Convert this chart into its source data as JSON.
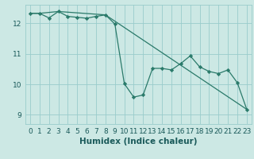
{
  "xlabel": "Humidex (Indice chaleur)",
  "background_color": "#cce8e4",
  "grid_color": "#99cccc",
  "line_color": "#2a7a6a",
  "marker_color": "#2a7a6a",
  "xlim": [
    -0.5,
    23.5
  ],
  "ylim": [
    8.7,
    12.6
  ],
  "yticks": [
    9,
    10,
    11,
    12
  ],
  "xticks": [
    0,
    1,
    2,
    3,
    4,
    5,
    6,
    7,
    8,
    9,
    10,
    11,
    12,
    13,
    14,
    15,
    16,
    17,
    18,
    19,
    20,
    21,
    22,
    23
  ],
  "line1_x": [
    0,
    1,
    2,
    3,
    4,
    5,
    6,
    7,
    8,
    9,
    10,
    11,
    12,
    13,
    14,
    15,
    16,
    17,
    18,
    19,
    20,
    21,
    22,
    23
  ],
  "line1_y": [
    12.32,
    12.32,
    12.17,
    12.38,
    12.22,
    12.19,
    12.16,
    12.22,
    12.27,
    11.97,
    10.02,
    9.58,
    9.65,
    10.52,
    10.52,
    10.47,
    10.68,
    10.93,
    10.57,
    10.42,
    10.35,
    10.47,
    10.05,
    9.18
  ],
  "line2_x": [
    0,
    1,
    3,
    8,
    23
  ],
  "line2_y": [
    12.32,
    12.32,
    12.38,
    12.27,
    9.18
  ],
  "tick_fontsize": 6.5,
  "label_fontsize": 7.5,
  "font_color": "#1a5a5a"
}
